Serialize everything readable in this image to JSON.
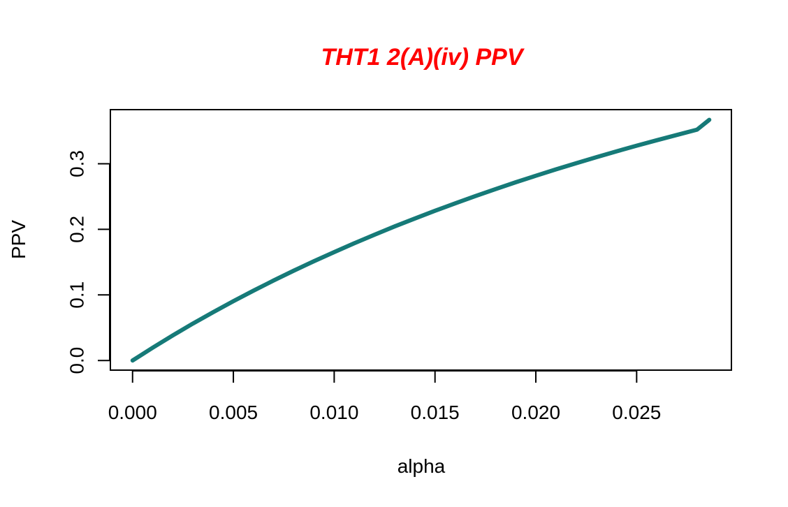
{
  "chart_data": {
    "type": "line",
    "title": "THT1 2(A)(iv) PPV",
    "title_color": "#ff0000",
    "xlabel": "alpha",
    "ylabel": "PPV",
    "xlim": [
      -0.0011,
      0.0297
    ],
    "ylim": [
      -0.0147,
      0.3825
    ],
    "x_ticks": [
      0.0,
      0.005,
      0.01,
      0.015,
      0.02,
      0.025
    ],
    "x_tick_labels": [
      "0.000",
      "0.005",
      "0.010",
      "0.015",
      "0.020",
      "0.025"
    ],
    "y_ticks": [
      0.0,
      0.1,
      0.2,
      0.3
    ],
    "y_tick_labels": [
      "0.0",
      "0.1",
      "0.2",
      "0.3"
    ],
    "grid": false,
    "legend": "none",
    "series": [
      {
        "color": "#167a78",
        "x": [
          0.0,
          0.001,
          0.002,
          0.003,
          0.004,
          0.005,
          0.006,
          0.007,
          0.008,
          0.009,
          0.01,
          0.011,
          0.012,
          0.013,
          0.014,
          0.015,
          0.016,
          0.017,
          0.018,
          0.019,
          0.02,
          0.021,
          0.022,
          0.023,
          0.024,
          0.025,
          0.026,
          0.027,
          0.028,
          0.0286
        ],
        "y": [
          0.0,
          0.0195,
          0.0383,
          0.0564,
          0.0737,
          0.0904,
          0.1065,
          0.122,
          0.137,
          0.1514,
          0.1653,
          0.1788,
          0.1918,
          0.2044,
          0.2165,
          0.2283,
          0.2396,
          0.2507,
          0.2613,
          0.2717,
          0.2817,
          0.2914,
          0.3008,
          0.31,
          0.3189,
          0.3275,
          0.3359,
          0.344,
          0.352,
          0.367
        ]
      }
    ]
  }
}
